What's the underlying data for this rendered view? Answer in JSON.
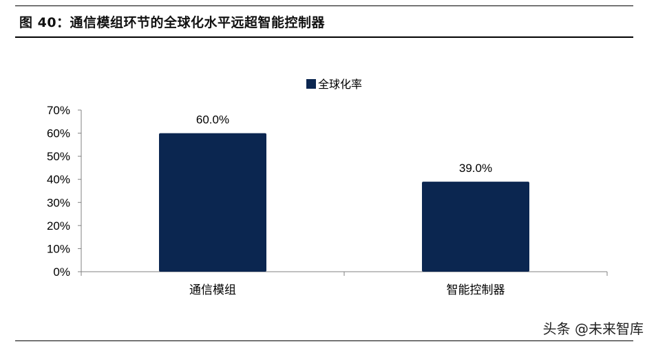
{
  "header": {
    "title": "图 40：通信模组环节的全球化水平远超智能控制器"
  },
  "watermark": "头条 @未来智库",
  "chart_data": {
    "type": "bar",
    "categories": [
      "通信模组",
      "智能控制器"
    ],
    "series": [
      {
        "name": "全球化率",
        "values": [
          0.6,
          0.39
        ],
        "color": "#0b2650"
      }
    ],
    "data_labels": [
      "60.0%",
      "39.0%"
    ],
    "ylim": [
      0,
      0.7
    ],
    "yticks": [
      0,
      0.1,
      0.2,
      0.3,
      0.4,
      0.5,
      0.6,
      0.7
    ],
    "ytick_labels": [
      "0%",
      "10%",
      "20%",
      "30%",
      "40%",
      "50%",
      "60%",
      "70%"
    ],
    "legend": "top-center",
    "grid": false
  }
}
